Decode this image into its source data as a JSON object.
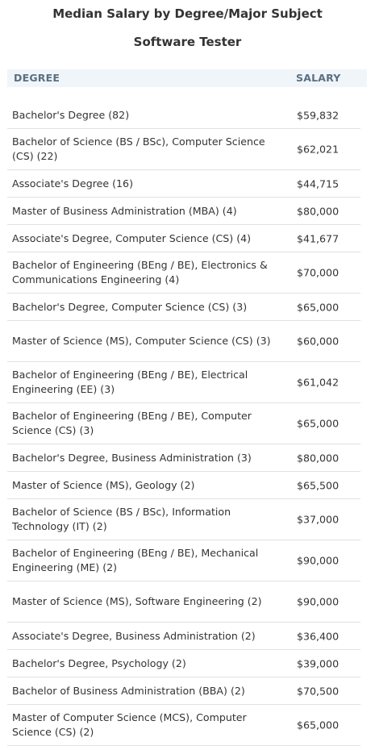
{
  "page": {
    "title": "Median Salary by Degree/Major Subject",
    "subtitle": "Software Tester"
  },
  "table": {
    "headers": {
      "degree": "DEGREE",
      "salary": "SALARY"
    },
    "rows": [
      {
        "degree": "Bachelor's Degree (82)",
        "salary": "$59,832",
        "lines": 1
      },
      {
        "degree": "Bachelor of Science (BS / BSc), Computer Science (CS) (22)",
        "salary": "$62,021",
        "lines": 2
      },
      {
        "degree": "Associate's Degree (16)",
        "salary": "$44,715",
        "lines": 1
      },
      {
        "degree": "Master of Business Administration (MBA) (4)",
        "salary": "$80,000",
        "lines": 1
      },
      {
        "degree": "Associate's Degree, Computer Science (CS) (4)",
        "salary": "$41,677",
        "lines": 1
      },
      {
        "degree": "Bachelor of Engineering (BEng / BE), Electronics & Communications Engineering (4)",
        "salary": "$70,000",
        "lines": 2
      },
      {
        "degree": "Bachelor's Degree, Computer Science (CS) (3)",
        "salary": "$65,000",
        "lines": 1
      },
      {
        "degree": "Master of Science (MS), Computer Science (CS) (3)",
        "salary": "$60,000",
        "lines": 2
      },
      {
        "degree": "Bachelor of Engineering (BEng / BE), Electrical Engineering (EE) (3)",
        "salary": "$61,042",
        "lines": 2
      },
      {
        "degree": "Bachelor of Engineering (BEng / BE), Computer Science (CS) (3)",
        "salary": "$65,000",
        "lines": 2
      },
      {
        "degree": "Bachelor's Degree, Business Administration (3)",
        "salary": "$80,000",
        "lines": 1
      },
      {
        "degree": "Master of Science (MS), Geology (2)",
        "salary": "$65,500",
        "lines": 1
      },
      {
        "degree": "Bachelor of Science (BS / BSc), Information Technology (IT) (2)",
        "salary": "$37,000",
        "lines": 2
      },
      {
        "degree": "Bachelor of Engineering (BEng / BE), Mechanical Engineering (ME) (2)",
        "salary": "$90,000",
        "lines": 2
      },
      {
        "degree": "Master of Science (MS), Software Engineering (2)",
        "salary": "$90,000",
        "lines": 2
      },
      {
        "degree": "Associate's Degree, Business Administration (2)",
        "salary": "$36,400",
        "lines": 1
      },
      {
        "degree": "Bachelor's Degree, Psychology (2)",
        "salary": "$39,000",
        "lines": 1
      },
      {
        "degree": "Bachelor of Business Administration (BBA) (2)",
        "salary": "$70,500",
        "lines": 1
      },
      {
        "degree": "Master of Computer Science (MCS), Computer Science (CS) (2)",
        "salary": "$65,000",
        "lines": 2
      }
    ]
  }
}
